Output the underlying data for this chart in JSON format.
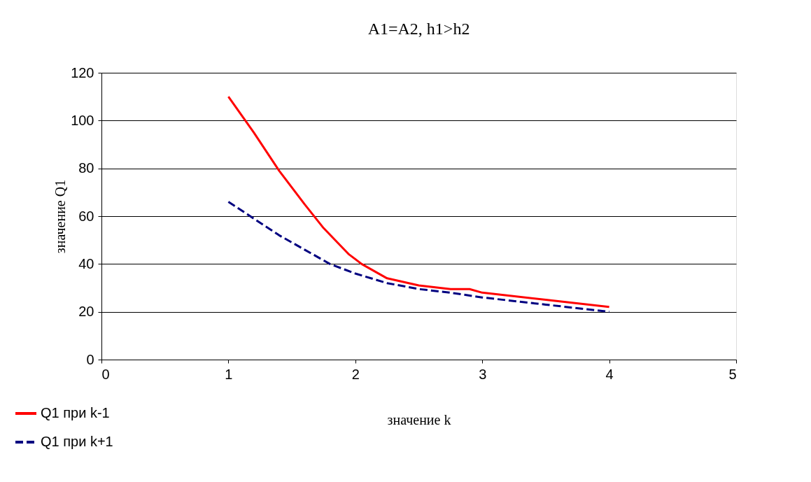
{
  "chart_data": {
    "type": "line",
    "title": "A1=A2,  h1>h2",
    "xlabel": "значение k",
    "ylabel": "значение Q1",
    "xlim": [
      0,
      5
    ],
    "xticks": [
      0,
      1,
      2,
      3,
      4,
      5
    ],
    "ylim": [
      0,
      120
    ],
    "yticks": [
      0,
      20,
      40,
      60,
      80,
      100,
      120
    ],
    "grid": "y",
    "legend": "bottom left",
    "marker": "none",
    "series": [
      {
        "name": "Q1 при k-1",
        "color": "#ff0000",
        "line_style": "solid",
        "x": [
          1,
          1.2,
          1.4,
          1.6,
          1.75,
          1.95,
          2.05,
          2.25,
          2.5,
          2.75,
          2.9,
          3,
          3.5,
          4
        ],
        "values": [
          110,
          95,
          79,
          65,
          55,
          44,
          40,
          34,
          31,
          29.5,
          29.5,
          28,
          25,
          22
        ]
      },
      {
        "name": "Q1 при k+1",
        "color": "#000080",
        "line_style": "dashed",
        "x": [
          1,
          1.2,
          1.4,
          1.6,
          1.8,
          2,
          2.25,
          2.5,
          2.75,
          3,
          3.5,
          4
        ],
        "values": [
          66,
          59,
          52,
          46,
          40,
          36,
          32,
          29.5,
          28,
          26,
          23,
          20
        ]
      }
    ]
  }
}
